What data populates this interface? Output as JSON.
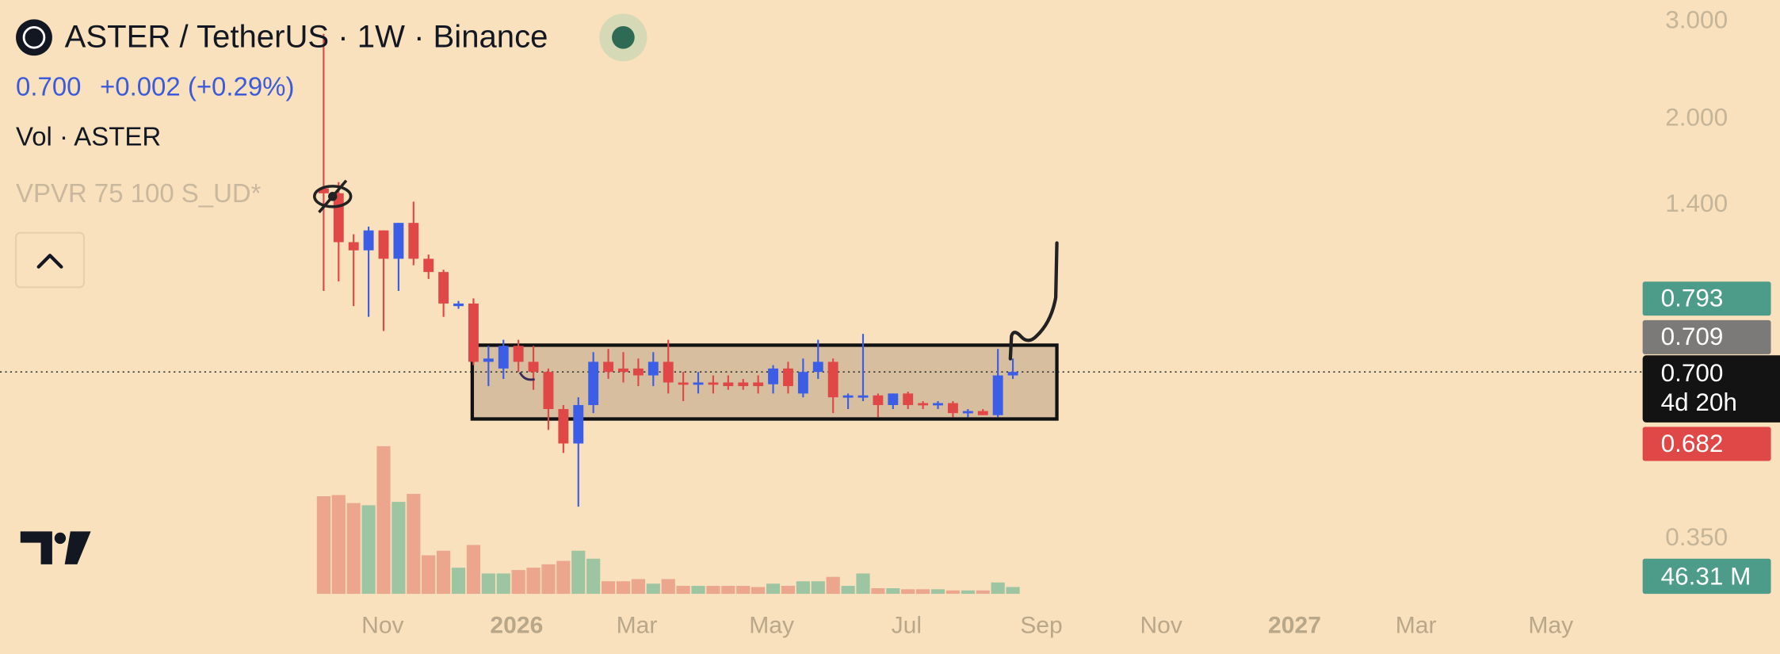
{
  "header": {
    "price": "0.700",
    "change": "+0.002 (+0.29%)",
    "volume_study": "Vol · ASTER",
    "vpvr": "VPVR 75 100 S_UD*"
  },
  "price_scale": {
    "badges": [
      "0.793",
      "0.709",
      "0.700",
      "4d 20h",
      "0.682"
    ]
  },
  "chart_data": {
    "type": "candlestick",
    "title": "ASTER / TetherUS · 1W · Binance",
    "log_scale": true,
    "grid": false,
    "up_color": "#3c5ee6",
    "down_color": "#e04848",
    "volume_up_color": "#9ec5a2",
    "volume_down_color": "#eba68d",
    "x": [
      0,
      1,
      2,
      3,
      4,
      5,
      6,
      7,
      8,
      9,
      10,
      11,
      12,
      13,
      14,
      15,
      16,
      17,
      18,
      19,
      20,
      21,
      22,
      23,
      24,
      25,
      26,
      27,
      28,
      29,
      30,
      31,
      32,
      33,
      34,
      35,
      36,
      37,
      38,
      39,
      40,
      41,
      42,
      43,
      44,
      45,
      46
    ],
    "open": [
      1.5,
      1.47,
      1.2,
      1.16,
      1.26,
      1.12,
      1.3,
      1.12,
      1.06,
      0.92,
      0.93,
      0.73,
      0.71,
      0.78,
      0.73,
      0.7,
      0.6,
      0.52,
      0.61,
      0.73,
      0.71,
      0.71,
      0.69,
      0.73,
      0.67,
      0.665,
      0.67,
      0.67,
      0.67,
      0.67,
      0.665,
      0.71,
      0.64,
      0.7,
      0.73,
      0.63,
      0.63,
      0.635,
      0.61,
      0.64,
      0.615,
      0.61,
      0.615,
      0.59,
      0.595,
      0.585,
      0.69
    ],
    "high": [
      2.85,
      1.54,
      1.24,
      1.28,
      1.26,
      1.3,
      1.42,
      1.14,
      1.07,
      0.94,
      0.95,
      0.78,
      0.8,
      0.8,
      0.78,
      0.71,
      0.61,
      0.63,
      0.76,
      0.77,
      0.76,
      0.74,
      0.76,
      0.8,
      0.7,
      0.7,
      0.69,
      0.69,
      0.68,
      0.69,
      0.72,
      0.73,
      0.74,
      0.8,
      0.74,
      0.64,
      0.82,
      0.64,
      0.64,
      0.645,
      0.62,
      0.62,
      0.62,
      0.6,
      0.6,
      0.77,
      0.74
    ],
    "low": [
      0.98,
      1.02,
      0.92,
      0.88,
      0.83,
      0.98,
      1.09,
      1.03,
      0.88,
      0.91,
      0.72,
      0.66,
      0.68,
      0.7,
      0.65,
      0.55,
      0.5,
      0.4,
      0.59,
      0.68,
      0.67,
      0.66,
      0.66,
      0.64,
      0.62,
      0.64,
      0.64,
      0.65,
      0.65,
      0.64,
      0.64,
      0.64,
      0.63,
      0.68,
      0.59,
      0.6,
      0.62,
      0.58,
      0.6,
      0.6,
      0.6,
      0.6,
      0.58,
      0.58,
      0.585,
      0.58,
      0.68
    ],
    "close": [
      1.47,
      1.2,
      1.16,
      1.26,
      1.12,
      1.3,
      1.12,
      1.06,
      0.93,
      0.93,
      0.73,
      0.74,
      0.78,
      0.73,
      0.7,
      0.6,
      0.52,
      0.61,
      0.73,
      0.7,
      0.7,
      0.69,
      0.73,
      0.67,
      0.665,
      0.67,
      0.665,
      0.66,
      0.66,
      0.66,
      0.71,
      0.66,
      0.7,
      0.73,
      0.63,
      0.635,
      0.635,
      0.61,
      0.64,
      0.61,
      0.61,
      0.615,
      0.59,
      0.595,
      0.585,
      0.69,
      0.7
    ],
    "volume": {
      "values": [
        661,
        669,
        615,
        600,
        1000,
        623,
        677,
        261,
        292,
        177,
        331,
        138,
        138,
        161,
        177,
        200,
        223,
        292,
        238,
        85,
        85,
        100,
        69,
        100,
        54,
        54,
        54,
        54,
        54,
        46,
        69,
        54,
        85,
        85,
        115,
        54,
        138,
        38,
        38,
        31,
        31,
        31,
        23,
        23,
        23,
        77,
        46.31
      ],
      "last_label": "46.31 M",
      "ylim": [
        0,
        1000
      ]
    },
    "xlim": [
      -21.6,
      87.5
    ],
    "ylim": [
      0.2785,
      3.281
    ],
    "xticks": [
      {
        "value": 3.94,
        "label": "Nov"
      },
      {
        "value": 12.88,
        "label": "2026"
      },
      {
        "value": 20.9,
        "label": "Mar"
      },
      {
        "value": 29.9,
        "label": "May"
      },
      {
        "value": 38.9,
        "label": "Jul"
      },
      {
        "value": 47.9,
        "label": "Sep"
      },
      {
        "value": 55.9,
        "label": "Nov"
      },
      {
        "value": 64.8,
        "label": "2027"
      },
      {
        "value": 72.9,
        "label": "Mar"
      },
      {
        "value": 81.9,
        "label": "May"
      }
    ],
    "yticks": [
      {
        "value": 3,
        "label": "3.000"
      },
      {
        "value": 2,
        "label": "2.000"
      },
      {
        "value": 1.4,
        "label": "1.400"
      },
      {
        "value": 0.35,
        "label": "0.350"
      }
    ]
  }
}
